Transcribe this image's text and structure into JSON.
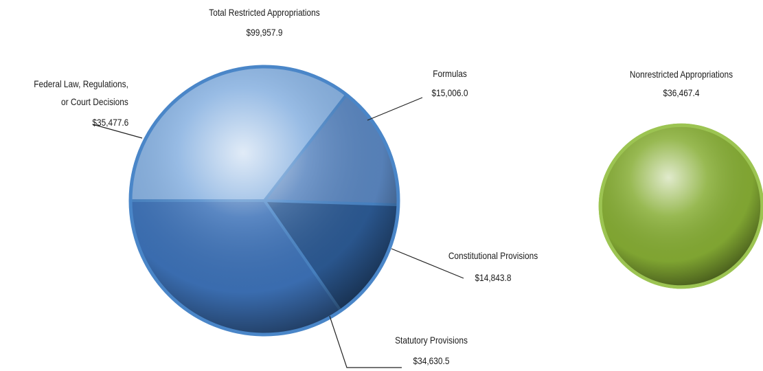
{
  "chart_data": [
    {
      "type": "pie",
      "title": "Total Restricted Appropriations",
      "total": {
        "value": 99957.9,
        "label": "$99,957.9"
      },
      "categories": [
        "Federal Law, Regulations,\nor Court Decisions",
        "Formulas",
        "Constitutional Provisions",
        "Statutory Provisions"
      ],
      "values": [
        35477.6,
        15006.0,
        14843.8,
        34630.5
      ],
      "value_labels": [
        "$35,477.6",
        "$15,006.0",
        "$14,843.8",
        "$34,630.5"
      ],
      "colors": [
        "#86b0e0",
        "#5a86c0",
        "#2c5a94",
        "#3d72b8"
      ],
      "border_color": "#4a86c8"
    },
    {
      "type": "pie",
      "categories": [
        "Nonrestricted Appropriations"
      ],
      "values": [
        36467.4
      ],
      "value_labels": [
        "$36,467.4"
      ],
      "colors": [
        "#86ad34"
      ],
      "border_color": "#9cc452"
    }
  ]
}
